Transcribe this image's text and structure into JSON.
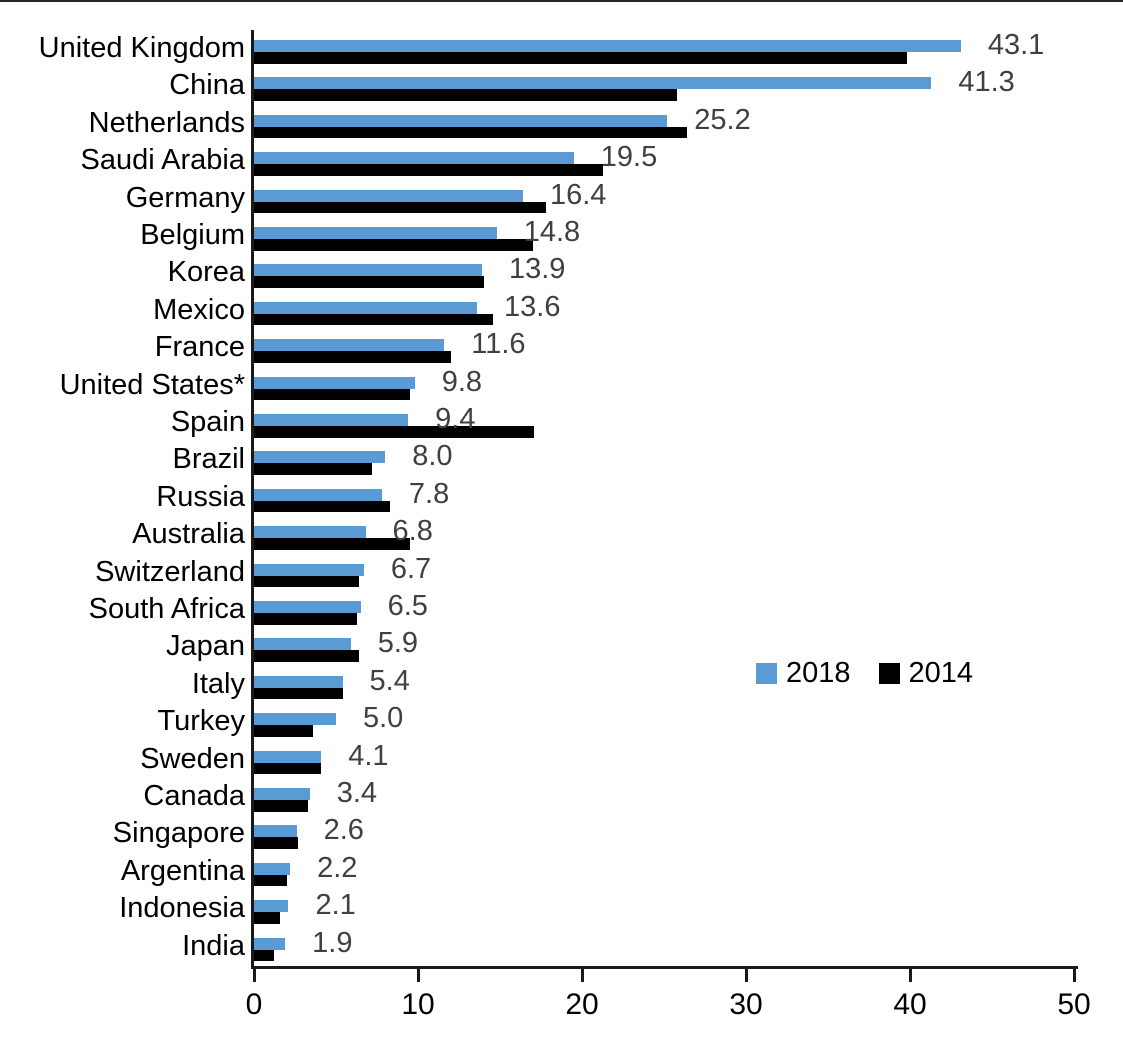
{
  "chart_data": {
    "type": "bar",
    "orientation": "horizontal",
    "title": "",
    "xlabel": "",
    "ylabel": "",
    "categories": [
      "United Kingdom",
      "China",
      "Netherlands",
      "Saudi Arabia",
      "Germany",
      "Belgium",
      "Korea",
      "Mexico",
      "France",
      "United States*",
      "Spain",
      "Brazil",
      "Russia",
      "Australia",
      "Switzerland",
      "South Africa",
      "Japan",
      "Italy",
      "Turkey",
      "Sweden",
      "Canada",
      "Singapore",
      "Argentina",
      "Indonesia",
      "India"
    ],
    "series": [
      {
        "name": "2018",
        "color": "#5B9BD5",
        "values": [
          43.1,
          41.3,
          25.2,
          19.5,
          16.4,
          14.8,
          13.9,
          13.6,
          11.6,
          9.8,
          9.4,
          8.0,
          7.8,
          6.8,
          6.7,
          6.5,
          5.9,
          5.4,
          5.0,
          4.1,
          3.4,
          2.6,
          2.2,
          2.1,
          1.9
        ]
      },
      {
        "name": "2014",
        "color": "#000000",
        "values": [
          39.8,
          25.8,
          26.4,
          21.3,
          17.8,
          17.0,
          14.0,
          14.6,
          12.0,
          9.5,
          17.1,
          7.2,
          8.3,
          9.5,
          6.4,
          6.3,
          6.4,
          5.4,
          3.6,
          4.1,
          3.3,
          2.7,
          2.0,
          1.6,
          1.2
        ]
      }
    ],
    "data_labels": {
      "series": "2018",
      "labels": [
        "43.1",
        "41.3",
        "25.2",
        "19.5",
        "16.4",
        "14.8",
        "13.9",
        "13.6",
        "11.6",
        "9.8",
        "9.4",
        "8.0",
        "7.8",
        "6.8",
        "6.7",
        "6.5",
        "5.9",
        "5.4",
        "5.0",
        "4.1",
        "3.4",
        "2.6",
        "2.2",
        "2.1",
        "1.9"
      ]
    },
    "xlim": [
      0,
      50
    ],
    "x_ticks": [
      "0",
      "10",
      "20",
      "30",
      "40",
      "50"
    ],
    "x_tick_values": [
      0,
      10,
      20,
      30,
      40,
      50
    ],
    "grid": false,
    "legend": {
      "position": "middle-right",
      "entries": [
        "2018",
        "2014"
      ]
    }
  },
  "colors": {
    "bar_2018": "#5B9BD5",
    "bar_2014": "#000000",
    "value_label": "#404040",
    "category_label": "#000000",
    "axis": "#1a1a1a"
  }
}
